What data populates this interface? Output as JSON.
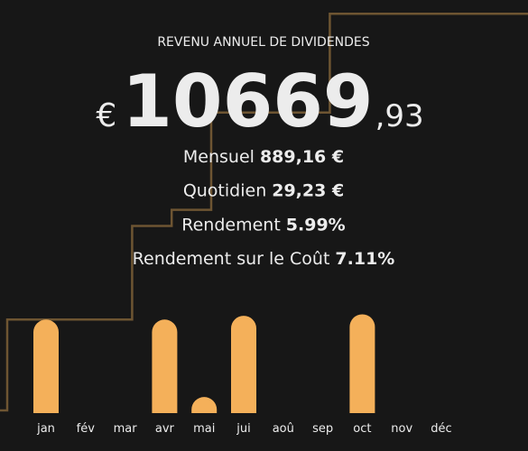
{
  "header": {
    "title": "REVENU ANNUEL DE DIVIDENDES",
    "currency": "€",
    "integer": "10669",
    "decimal": ",93"
  },
  "stats": [
    {
      "label": "Mensuel",
      "value": "889,16 €"
    },
    {
      "label": "Quotidien",
      "value": "29,23 €"
    },
    {
      "label": "Rendement",
      "value": "5.99%"
    },
    {
      "label": "Rendement sur le Coût",
      "value": "7.11%"
    }
  ],
  "chart_data": {
    "type": "bar",
    "categories": [
      "jan",
      "fév",
      "mar",
      "avr",
      "mai",
      "jui",
      "aoû",
      "sep",
      "oct",
      "nov",
      "déc"
    ],
    "values": [
      2500,
      0,
      0,
      2500,
      430,
      2600,
      0,
      0,
      2640,
      0,
      0
    ],
    "color": "#f4b05a",
    "line_color": "#6e5532",
    "cumulative_line": true
  }
}
